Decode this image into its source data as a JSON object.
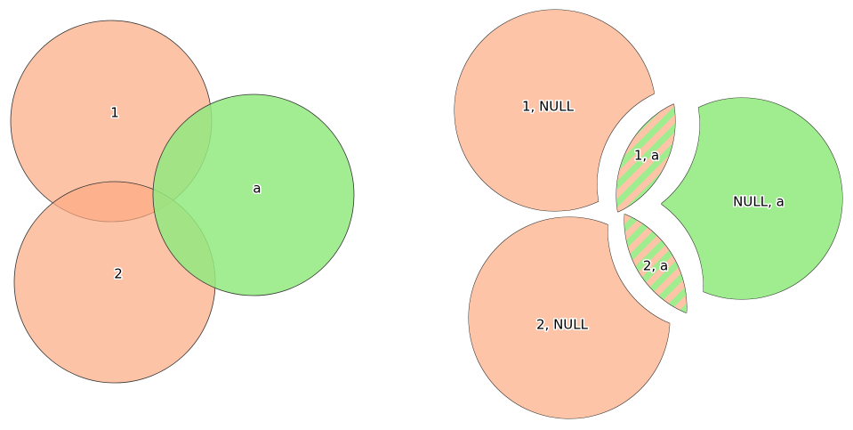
{
  "colors": {
    "layer_1": "#fca981",
    "layer_a": "#92ea7f",
    "piece_peach": "#fdc4a7",
    "piece_green": "#a0ed8f",
    "outline": "#333333"
  },
  "input": {
    "labels": {
      "c1": "1",
      "c2": "2",
      "ca": "a"
    }
  },
  "result": {
    "labels": {
      "one_null": "1, NULL",
      "one_a": "1, a",
      "two_a": "2, a",
      "null_a": "NULL, a",
      "two_null": "2, NULL"
    }
  }
}
